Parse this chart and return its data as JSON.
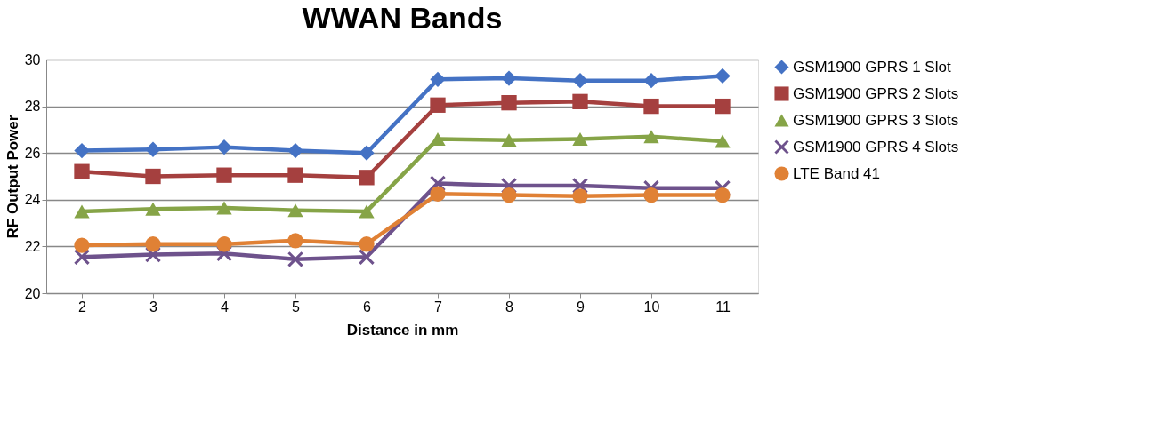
{
  "chart_data": {
    "type": "line",
    "title": "WWAN Bands",
    "xlabel": "Distance in mm",
    "ylabel": "RF Output Power",
    "categories": [
      "2",
      "3",
      "4",
      "5",
      "6",
      "7",
      "8",
      "9",
      "10",
      "11"
    ],
    "series": [
      {
        "name": "GSM1900 GPRS 1 Slot",
        "color": "#4472c4",
        "marker": "diamond",
        "values": [
          26.1,
          26.15,
          26.25,
          26.1,
          26.0,
          29.15,
          29.2,
          29.1,
          29.1,
          29.3
        ]
      },
      {
        "name": "GSM1900 GPRS 2 Slots",
        "color": "#a5403f",
        "marker": "square",
        "values": [
          25.2,
          25.0,
          25.05,
          25.05,
          24.95,
          28.05,
          28.15,
          28.2,
          28.0,
          28.0
        ]
      },
      {
        "name": "GSM1900 GPRS 3 Slots",
        "color": "#86a447",
        "marker": "triangle",
        "values": [
          23.5,
          23.6,
          23.65,
          23.55,
          23.5,
          26.6,
          26.55,
          26.6,
          26.7,
          26.5
        ]
      },
      {
        "name": "GSM1900 GPRS 4 Slots",
        "color": "#6e528c",
        "marker": "cross",
        "values": [
          21.55,
          21.65,
          21.7,
          21.45,
          21.55,
          24.7,
          24.6,
          24.6,
          24.5,
          24.5
        ]
      },
      {
        "name": "LTE Band 41",
        "color": "#e08135",
        "marker": "circle",
        "values": [
          22.05,
          22.1,
          22.1,
          22.25,
          22.1,
          24.25,
          24.2,
          24.15,
          24.2,
          24.2
        ]
      }
    ],
    "ylim": [
      20,
      30
    ],
    "yticks": [
      20,
      22,
      24,
      26,
      28,
      30
    ],
    "grid": "y",
    "legend": "right",
    "line_style": "solid"
  }
}
